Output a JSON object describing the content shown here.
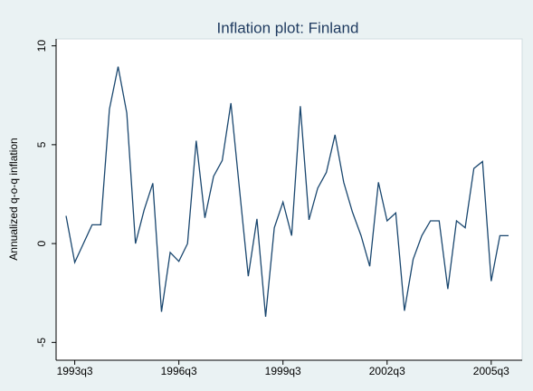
{
  "chart_data": {
    "type": "line",
    "title": "Inflation plot: Finland",
    "y_label": "Annualized q-o-q inflation",
    "categories": [
      null,
      "1993q3",
      null,
      null,
      null,
      null,
      null,
      null,
      null,
      null,
      null,
      null,
      null,
      "1996q3",
      null,
      null,
      null,
      null,
      null,
      null,
      null,
      null,
      null,
      null,
      null,
      "1999q3",
      null,
      null,
      null,
      null,
      null,
      null,
      null,
      null,
      null,
      null,
      null,
      "2002q3",
      null,
      null,
      null,
      null,
      null,
      null,
      null,
      null,
      null,
      null,
      null,
      "2005q3",
      null,
      null
    ],
    "series": [
      {
        "name": "Inflation",
        "color": "#1a476f",
        "values": [
          1.4,
          -0.95,
          0,
          0.95,
          0.95,
          6.8,
          8.95,
          6.6,
          0,
          1.7,
          3.05,
          -3.45,
          -0.45,
          -0.9,
          0,
          5.2,
          1.3,
          3.4,
          4.2,
          7.1,
          2.7,
          -1.65,
          1.25,
          -3.7,
          0.8,
          2.1,
          0.4,
          6.95,
          1.2,
          2.8,
          3.6,
          5.5,
          3.1,
          1.6,
          0.4,
          -1.15,
          3.1,
          1.15,
          1.55,
          -3.4,
          -0.8,
          0.4,
          1.15,
          1.15,
          -2.3,
          1.15,
          0.8,
          3.8,
          4.15,
          -1.9,
          0.4,
          0.4
        ]
      }
    ],
    "ylim": [
      -5.9,
      10.35
    ],
    "yticks": [
      -5,
      0,
      5,
      10
    ],
    "grid": false
  }
}
